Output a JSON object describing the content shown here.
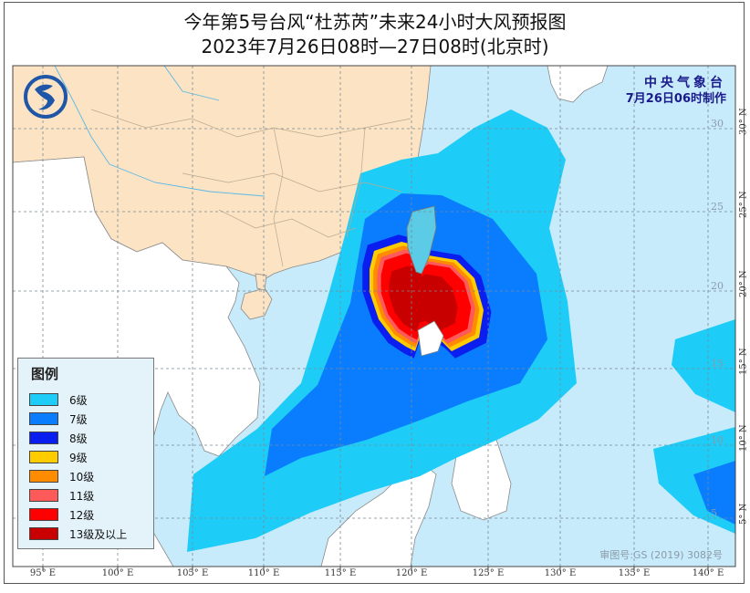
{
  "title": {
    "line1": "今年第5号台风“杜苏芮”未来24小时大风预报图",
    "line2": "2023年7月26日08时—27日08时(北京时)"
  },
  "agency": {
    "name": "中央气象台",
    "issued": "7月26日06时制作",
    "logo": "cma-dragon-logo"
  },
  "legend": {
    "title": "图例",
    "items": [
      {
        "label": "6级",
        "color": "#1ecdf7"
      },
      {
        "label": "7级",
        "color": "#0a7dff"
      },
      {
        "label": "8级",
        "color": "#0a1ef0"
      },
      {
        "label": "9级",
        "color": "#ffcc00"
      },
      {
        "label": "10级",
        "color": "#ff8c00"
      },
      {
        "label": "11级",
        "color": "#ff5a5a"
      },
      {
        "label": "12级",
        "color": "#ff0000"
      },
      {
        "label": "13级及以上",
        "color": "#c80000"
      }
    ]
  },
  "axes": {
    "longitude_labels": [
      "95° E",
      "100° E",
      "105° E",
      "110° E",
      "115° E",
      "120° E",
      "125° E",
      "130° E",
      "135° E",
      "140° E"
    ],
    "latitude_labels": [
      "30° N",
      "25° N",
      "20° N",
      "15° N",
      "10° N",
      "5° N"
    ],
    "inner_latitude_labels": [
      "30",
      "25",
      "20",
      "15",
      "10",
      "5"
    ]
  },
  "map_colors": {
    "sea": "#c8ebfb",
    "china_land": "#fbe3c3",
    "other_land": "#ffffff"
  },
  "approval": "审图号:GS (2019) 3082号"
}
